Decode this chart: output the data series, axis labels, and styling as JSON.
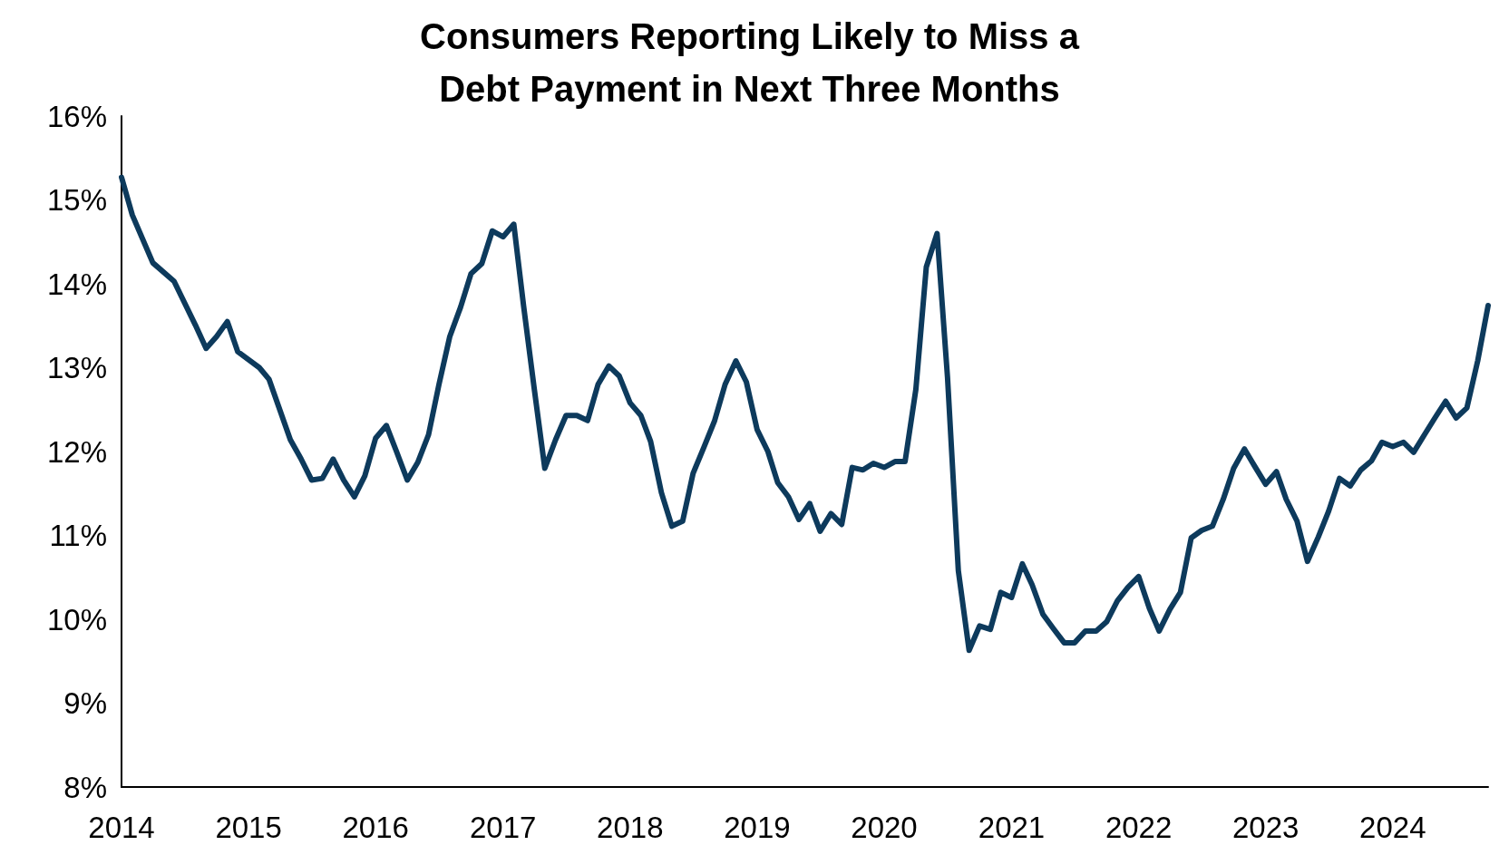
{
  "chart_data": {
    "type": "line",
    "title": "Consumers Reporting Likely to Miss a\nDebt Payment in Next Three Months",
    "x": [
      "2014-01",
      "2014-02",
      "2014-04",
      "2014-06",
      "2014-08",
      "2014-09",
      "2014-10",
      "2014-11",
      "2014-12",
      "2015-02",
      "2015-03",
      "2015-05",
      "2015-06",
      "2015-07",
      "2015-08",
      "2015-09",
      "2015-10",
      "2015-11",
      "2015-12",
      "2016-01",
      "2016-02",
      "2016-03",
      "2016-04",
      "2016-05",
      "2016-06",
      "2016-07",
      "2016-08",
      "2016-09",
      "2016-10",
      "2016-11",
      "2016-12",
      "2017-01",
      "2017-02",
      "2017-03",
      "2017-04",
      "2017-05",
      "2017-06",
      "2017-07",
      "2017-08",
      "2017-09",
      "2017-10",
      "2017-11",
      "2017-12",
      "2018-01",
      "2018-02",
      "2018-03",
      "2018-04",
      "2018-05",
      "2018-06",
      "2018-07",
      "2018-08",
      "2018-09",
      "2018-10",
      "2018-11",
      "2018-12",
      "2019-01",
      "2019-02",
      "2019-03",
      "2019-04",
      "2019-05",
      "2019-06",
      "2019-07",
      "2019-08",
      "2019-09",
      "2019-10",
      "2019-11",
      "2019-12",
      "2020-01",
      "2020-02",
      "2020-03",
      "2020-04",
      "2020-05",
      "2020-06",
      "2020-07",
      "2020-08",
      "2020-09",
      "2020-10",
      "2020-11",
      "2020-12",
      "2021-01",
      "2021-02",
      "2021-03",
      "2021-04",
      "2021-05",
      "2021-06",
      "2021-07",
      "2021-08",
      "2021-09",
      "2021-10",
      "2021-11",
      "2021-12",
      "2022-01",
      "2022-02",
      "2022-03",
      "2022-04",
      "2022-05",
      "2022-06",
      "2022-07",
      "2022-08",
      "2022-09",
      "2022-10",
      "2022-11",
      "2022-12",
      "2023-01",
      "2023-02",
      "2023-03",
      "2023-04",
      "2023-05",
      "2023-06",
      "2023-07",
      "2023-08",
      "2023-09",
      "2023-10",
      "2023-11",
      "2023-12",
      "2024-01",
      "2024-02",
      "2024-03",
      "2024-04",
      "2024-05",
      "2024-06",
      "2024-07",
      "2024-08",
      "2024-09",
      "2024-10"
    ],
    "series": [
      {
        "color": "#0d3a5c",
        "values": [
          15.27,
          14.82,
          14.25,
          14.03,
          13.51,
          13.23,
          13.37,
          13.55,
          13.19,
          13.0,
          12.86,
          12.14,
          11.91,
          11.66,
          11.68,
          11.91,
          11.66,
          11.46,
          11.71,
          12.16,
          12.31,
          12.0,
          11.66,
          11.87,
          12.2,
          12.8,
          13.37,
          13.72,
          14.12,
          14.24,
          14.63,
          14.56,
          14.71,
          13.74,
          12.74,
          11.8,
          12.14,
          12.43,
          12.43,
          12.37,
          12.8,
          13.02,
          12.9,
          12.58,
          12.43,
          12.12,
          11.51,
          11.11,
          11.17,
          11.74,
          12.05,
          12.37,
          12.8,
          13.08,
          12.83,
          12.26,
          12.0,
          11.63,
          11.46,
          11.19,
          11.38,
          11.05,
          11.26,
          11.13,
          11.81,
          11.78,
          11.86,
          11.81,
          11.88,
          11.88,
          12.74,
          14.2,
          14.6,
          12.88,
          10.58,
          9.63,
          9.92,
          9.88,
          10.32,
          10.26,
          10.66,
          10.41,
          10.06,
          9.89,
          9.72,
          9.72,
          9.86,
          9.86,
          9.97,
          10.22,
          10.38,
          10.51,
          10.13,
          9.86,
          10.12,
          10.32,
          10.97,
          11.06,
          11.11,
          11.43,
          11.8,
          12.03,
          11.82,
          11.61,
          11.76,
          11.43,
          11.17,
          10.69,
          10.98,
          11.29,
          11.68,
          11.59,
          11.78,
          11.89,
          12.11,
          12.06,
          12.11,
          11.99,
          12.2,
          12.4,
          12.6,
          12.4,
          12.52,
          13.08,
          13.74
        ]
      }
    ],
    "xlim": [
      "2014-01",
      "2024-10"
    ],
    "xticks": [
      "2014",
      "2015",
      "2016",
      "2017",
      "2018",
      "2019",
      "2020",
      "2021",
      "2022",
      "2023",
      "2024"
    ],
    "ylim": [
      8,
      16
    ],
    "yticks": [
      {
        "value": 8,
        "label": "8%"
      },
      {
        "value": 9,
        "label": "9%"
      },
      {
        "value": 10,
        "label": "10%"
      },
      {
        "value": 11,
        "label": "11%"
      },
      {
        "value": 12,
        "label": "12%"
      },
      {
        "value": 13,
        "label": "13%"
      },
      {
        "value": 14,
        "label": "14%"
      },
      {
        "value": 15,
        "label": "15%"
      },
      {
        "value": 16,
        "label": "16%"
      }
    ],
    "grid": false,
    "marker": "none",
    "line_style": "solid"
  }
}
